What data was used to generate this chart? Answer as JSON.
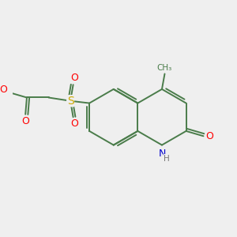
{
  "bg_color": "#efefef",
  "bond_color": "#4a7c4a",
  "bond_width": 1.4,
  "atom_colors": {
    "O": "#ff0000",
    "S": "#ccaa00",
    "N": "#0000cc",
    "H": "#777777",
    "C": "#4a7c4a"
  },
  "figsize": [
    3.0,
    3.0
  ],
  "dpi": 100,
  "xlim": [
    -4.2,
    3.8
  ],
  "ylim": [
    -2.5,
    2.8
  ]
}
